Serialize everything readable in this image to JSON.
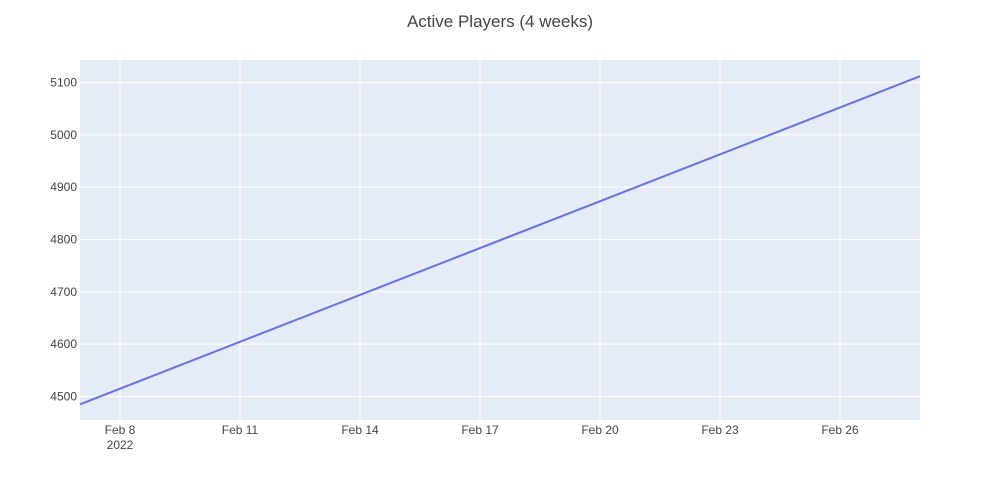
{
  "chart_data": {
    "type": "line",
    "title": "Active Players (4 weeks)",
    "xlabel": "",
    "ylabel": "",
    "x_tick_labels": [
      "Feb 8",
      "Feb 11",
      "Feb 14",
      "Feb 17",
      "Feb 20",
      "Feb 23",
      "Feb 26"
    ],
    "x_tick_dates": [
      "2022-02-08",
      "2022-02-11",
      "2022-02-14",
      "2022-02-17",
      "2022-02-20",
      "2022-02-23",
      "2022-02-26"
    ],
    "x_year_label": "2022",
    "y_ticks": [
      4500,
      4600,
      4700,
      4800,
      4900,
      5000,
      5100
    ],
    "xlim": [
      "2022-02-07",
      "2022-02-28"
    ],
    "ylim": [
      4455,
      5143
    ],
    "grid": true,
    "colors": {
      "plot_background": "#e5ecf6",
      "grid": "#ffffff",
      "line": "#636efa"
    },
    "series": [
      {
        "x": [
          "2022-02-07",
          "2022-02-28"
        ],
        "y": [
          4485,
          5112
        ]
      }
    ]
  }
}
